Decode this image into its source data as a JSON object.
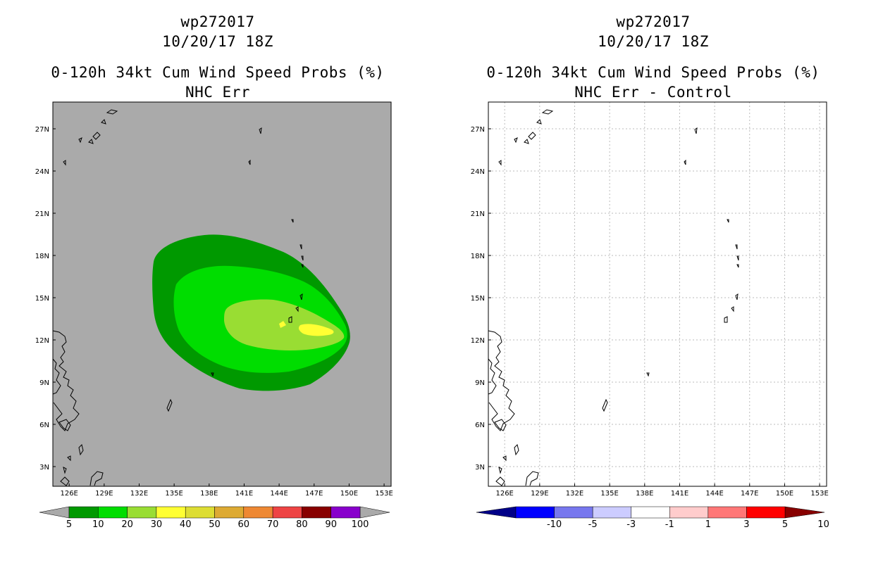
{
  "left_panel": {
    "storm_id": "wp272017",
    "datetime": "10/20/17 18Z",
    "product": "0-120h 34kt Cum Wind Speed Probs (%)",
    "subtitle": "NHC Err",
    "background_color": "#aaaaaa",
    "colorbar": {
      "labels": [
        "5",
        "10",
        "20",
        "30",
        "40",
        "50",
        "60",
        "70",
        "80",
        "90",
        "100"
      ],
      "colors": [
        "#009900",
        "#00dd00",
        "#99dd33",
        "#ffff33",
        "#dddd33",
        "#ddaa33",
        "#ee8833",
        "#ee4444",
        "#880000",
        "#8800cc"
      ],
      "end_arrow_color": "#aaaaaa"
    }
  },
  "right_panel": {
    "storm_id": "wp272017",
    "datetime": "10/20/17 18Z",
    "product": "0-120h 34kt Cum Wind Speed Probs (%)",
    "subtitle": "NHC Err - Control",
    "background_color": "#ffffff",
    "colorbar": {
      "labels": [
        "-10",
        "-5",
        "-3",
        "-1",
        "1",
        "3",
        "5",
        "10"
      ],
      "colors": [
        "#0000aa",
        "#0000ff",
        "#7777ee",
        "#ccccff",
        "#ffffff",
        "#ffcccc",
        "#ff7777",
        "#ff0000",
        "#aa0000"
      ],
      "end_arrow_left_color": "#000088",
      "end_arrow_right_color": "#880000"
    }
  },
  "axes": {
    "lon_labels": [
      "126E",
      "129E",
      "132E",
      "135E",
      "138E",
      "141E",
      "144E",
      "147E",
      "150E",
      "153E"
    ],
    "lon_values": [
      126,
      129,
      132,
      135,
      138,
      141,
      144,
      147,
      150,
      153
    ],
    "lat_labels": [
      "3N",
      "6N",
      "9N",
      "12N",
      "15N",
      "18N",
      "21N",
      "24N",
      "27N"
    ],
    "lat_values": [
      3,
      6,
      9,
      12,
      15,
      18,
      21,
      24,
      27
    ],
    "lon_range": [
      124.6,
      153.6
    ],
    "lat_range": [
      1.6,
      28.9
    ]
  },
  "probability_contours": {
    "band_colors": {
      "5-10": "#009900",
      "10-20": "#00dd00",
      "20-30": "#99dd33",
      "30-40": "#ffff33"
    }
  }
}
